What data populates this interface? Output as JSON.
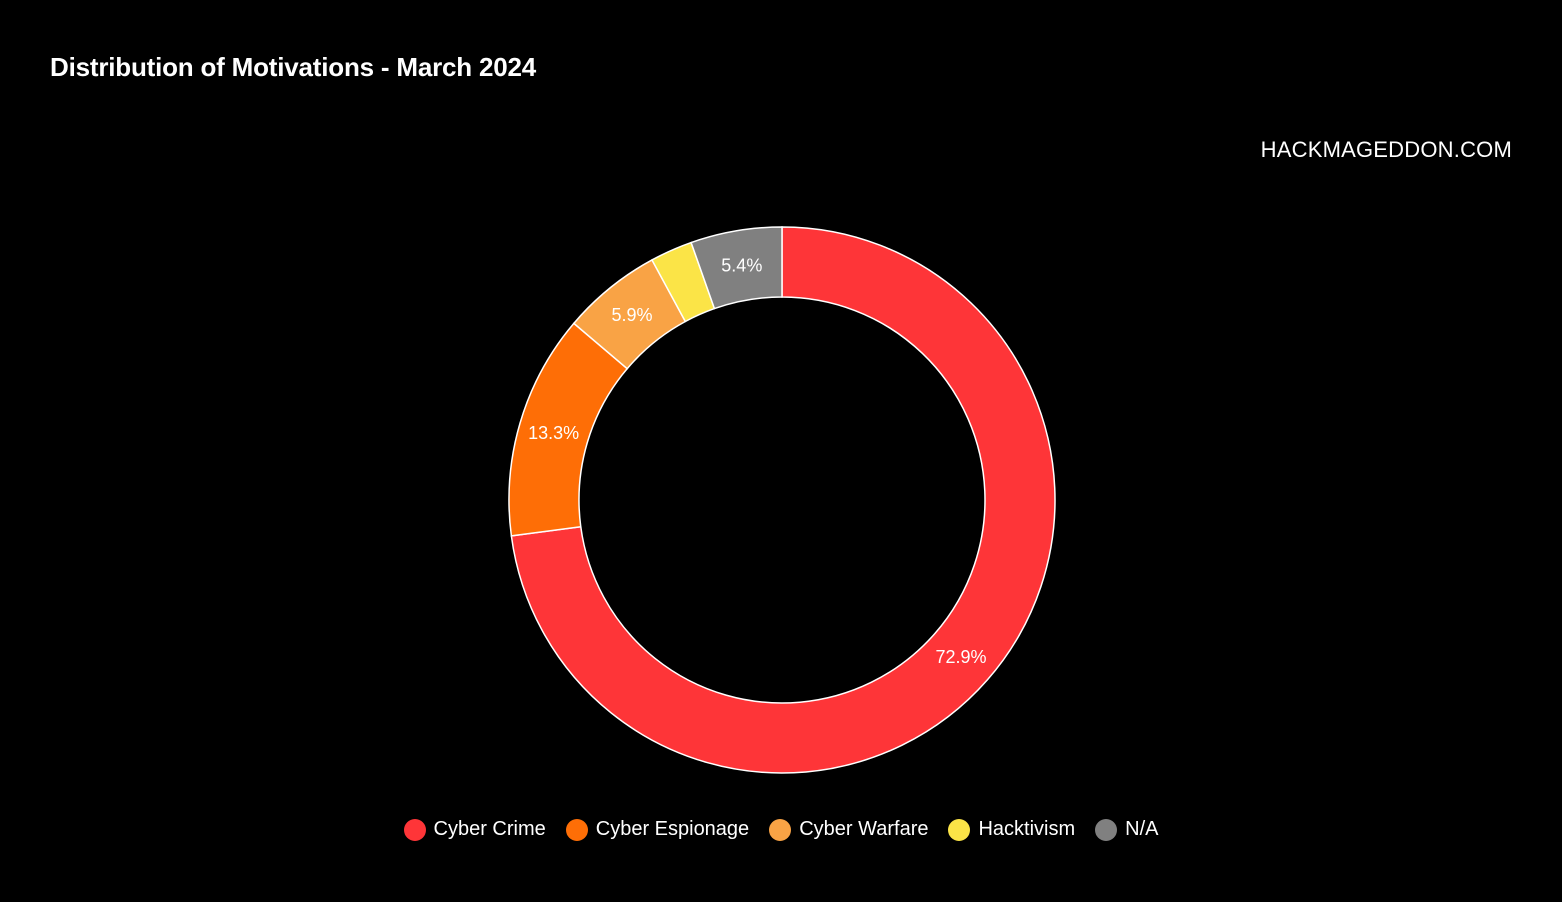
{
  "chart_data": {
    "type": "pie",
    "title": "Distribution of Motivations - March 2024",
    "watermark": "HACKMAGEDDON.COM",
    "donut": true,
    "legend_position": "bottom",
    "slices": [
      {
        "label": "Cyber Crime",
        "value": 72.9,
        "display": "72.9%",
        "color": "#fe3538"
      },
      {
        "label": "Cyber Espionage",
        "value": 13.3,
        "display": "13.3%",
        "color": "#fe6e06"
      },
      {
        "label": "Cyber Warfare",
        "value": 5.9,
        "display": "5.9%",
        "color": "#f9a345"
      },
      {
        "label": "Hacktivism",
        "value": 2.5,
        "display": "",
        "color": "#fbe447"
      },
      {
        "label": "N/A",
        "value": 5.4,
        "display": "5.4%",
        "color": "#808080"
      }
    ]
  }
}
